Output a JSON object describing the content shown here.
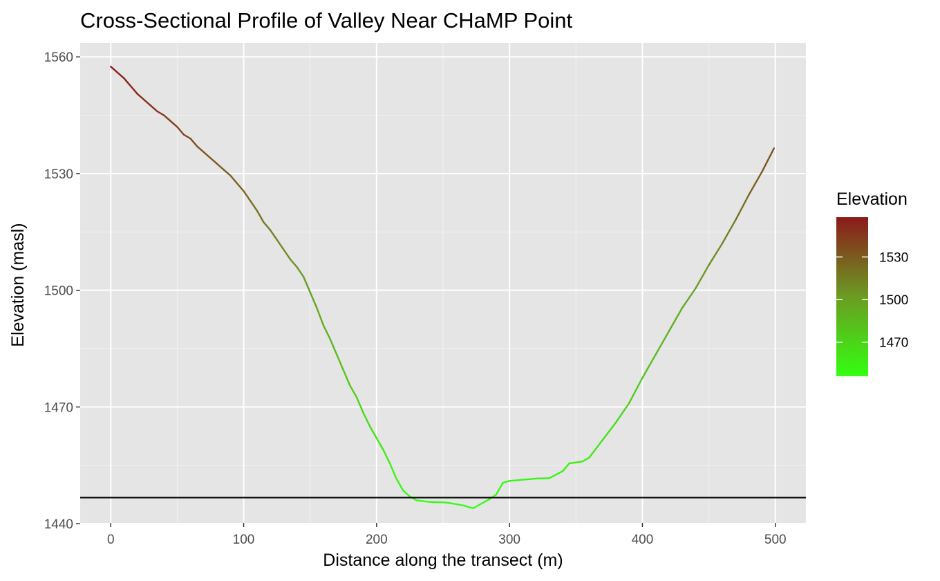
{
  "chart_data": {
    "type": "line",
    "title": "Cross-Sectional Profile of Valley Near CHaMP Point",
    "xlabel": "Distance along the transect (m)",
    "ylabel": "Elevation (masl)",
    "xlim": [
      -23,
      523
    ],
    "ylim": [
      1440.2,
      1563.6
    ],
    "x_ticks": [
      0,
      100,
      200,
      300,
      400,
      500
    ],
    "y_ticks": [
      1440,
      1470,
      1500,
      1530,
      1560
    ],
    "grid": true,
    "background": "#e5e5e5",
    "reference_line": {
      "orientation": "horizontal",
      "y": 1446.7,
      "color": "#000000"
    },
    "color_scale": {
      "title": "Elevation",
      "low_color": "#33ff11",
      "mid_color": "#6b9c23",
      "high_color": "#8b1a1a",
      "range": [
        1446,
        1558
      ],
      "breaks": [
        1530,
        1500,
        1470
      ],
      "position": "right"
    },
    "series": [
      {
        "x": [
          0,
          5,
          10,
          15,
          20,
          25,
          30,
          35,
          40,
          45,
          50,
          55,
          60,
          65,
          70,
          75,
          80,
          85,
          90,
          95,
          100,
          105,
          110,
          115,
          120,
          125,
          130,
          135,
          140,
          145,
          150,
          155,
          160,
          165,
          170,
          175,
          180,
          185,
          190,
          195,
          200,
          205,
          210,
          215,
          220,
          225,
          230,
          240,
          250,
          255,
          260,
          265,
          270,
          273,
          278,
          285,
          290,
          295,
          300,
          310,
          320,
          330,
          340,
          345,
          355,
          360,
          370,
          380,
          390,
          400,
          410,
          420,
          430,
          440,
          450,
          460,
          470,
          480,
          490,
          499
        ],
        "y": [
          1557.5,
          1556.0,
          1554.5,
          1552.5,
          1550.5,
          1549.0,
          1547.5,
          1546.0,
          1545.0,
          1543.5,
          1542.0,
          1540.0,
          1539.0,
          1537.0,
          1535.5,
          1534.0,
          1532.5,
          1531.0,
          1529.5,
          1527.5,
          1525.5,
          1523.0,
          1520.5,
          1517.5,
          1515.5,
          1513.0,
          1510.5,
          1508.0,
          1506.0,
          1503.5,
          1499.5,
          1495.5,
          1491.0,
          1487.5,
          1483.5,
          1479.5,
          1475.5,
          1472.5,
          1468.5,
          1465.0,
          1462.0,
          1459.0,
          1455.5,
          1451.5,
          1448.5,
          1447.0,
          1446.0,
          1445.6,
          1445.5,
          1445.3,
          1445.0,
          1444.7,
          1444.2,
          1444.0,
          1445.0,
          1446.3,
          1447.5,
          1450.5,
          1451.0,
          1451.3,
          1451.6,
          1451.7,
          1453.5,
          1455.5,
          1456.0,
          1457.0,
          1461.5,
          1466.0,
          1471.0,
          1477.5,
          1483.5,
          1489.5,
          1495.5,
          1500.5,
          1506.5,
          1512.0,
          1518.0,
          1524.5,
          1530.5,
          1536.5
        ]
      }
    ]
  }
}
